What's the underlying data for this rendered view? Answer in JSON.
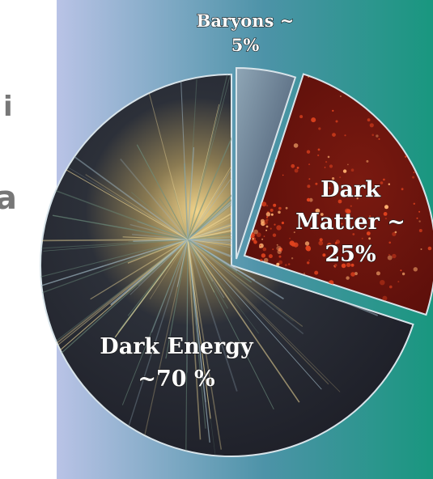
{
  "chart_data": {
    "type": "pie",
    "title": "",
    "categories": [
      "Dark Energy",
      "Dark Matter",
      "Baryons"
    ],
    "values": [
      70,
      25,
      5
    ],
    "slice_labels": [
      {
        "lines": [
          "Dark Energy",
          "~70 %"
        ]
      },
      {
        "lines": [
          "Dark",
          "Matter ~",
          "25%"
        ]
      },
      {
        "lines": [
          "Baryons ~",
          "5%"
        ]
      }
    ],
    "colors": {
      "dark_energy": "#1c1d26",
      "dark_energy_burst": "#f2d48a",
      "dark_matter": "#5a0e0a",
      "dark_matter_speckle": "#e2431e",
      "baryons": "#5c6f84",
      "background_left": "#b9c3e6",
      "background_right": "#19977f"
    },
    "legend": "none",
    "grid": false
  },
  "side_fragments": [
    "i",
    "a"
  ]
}
